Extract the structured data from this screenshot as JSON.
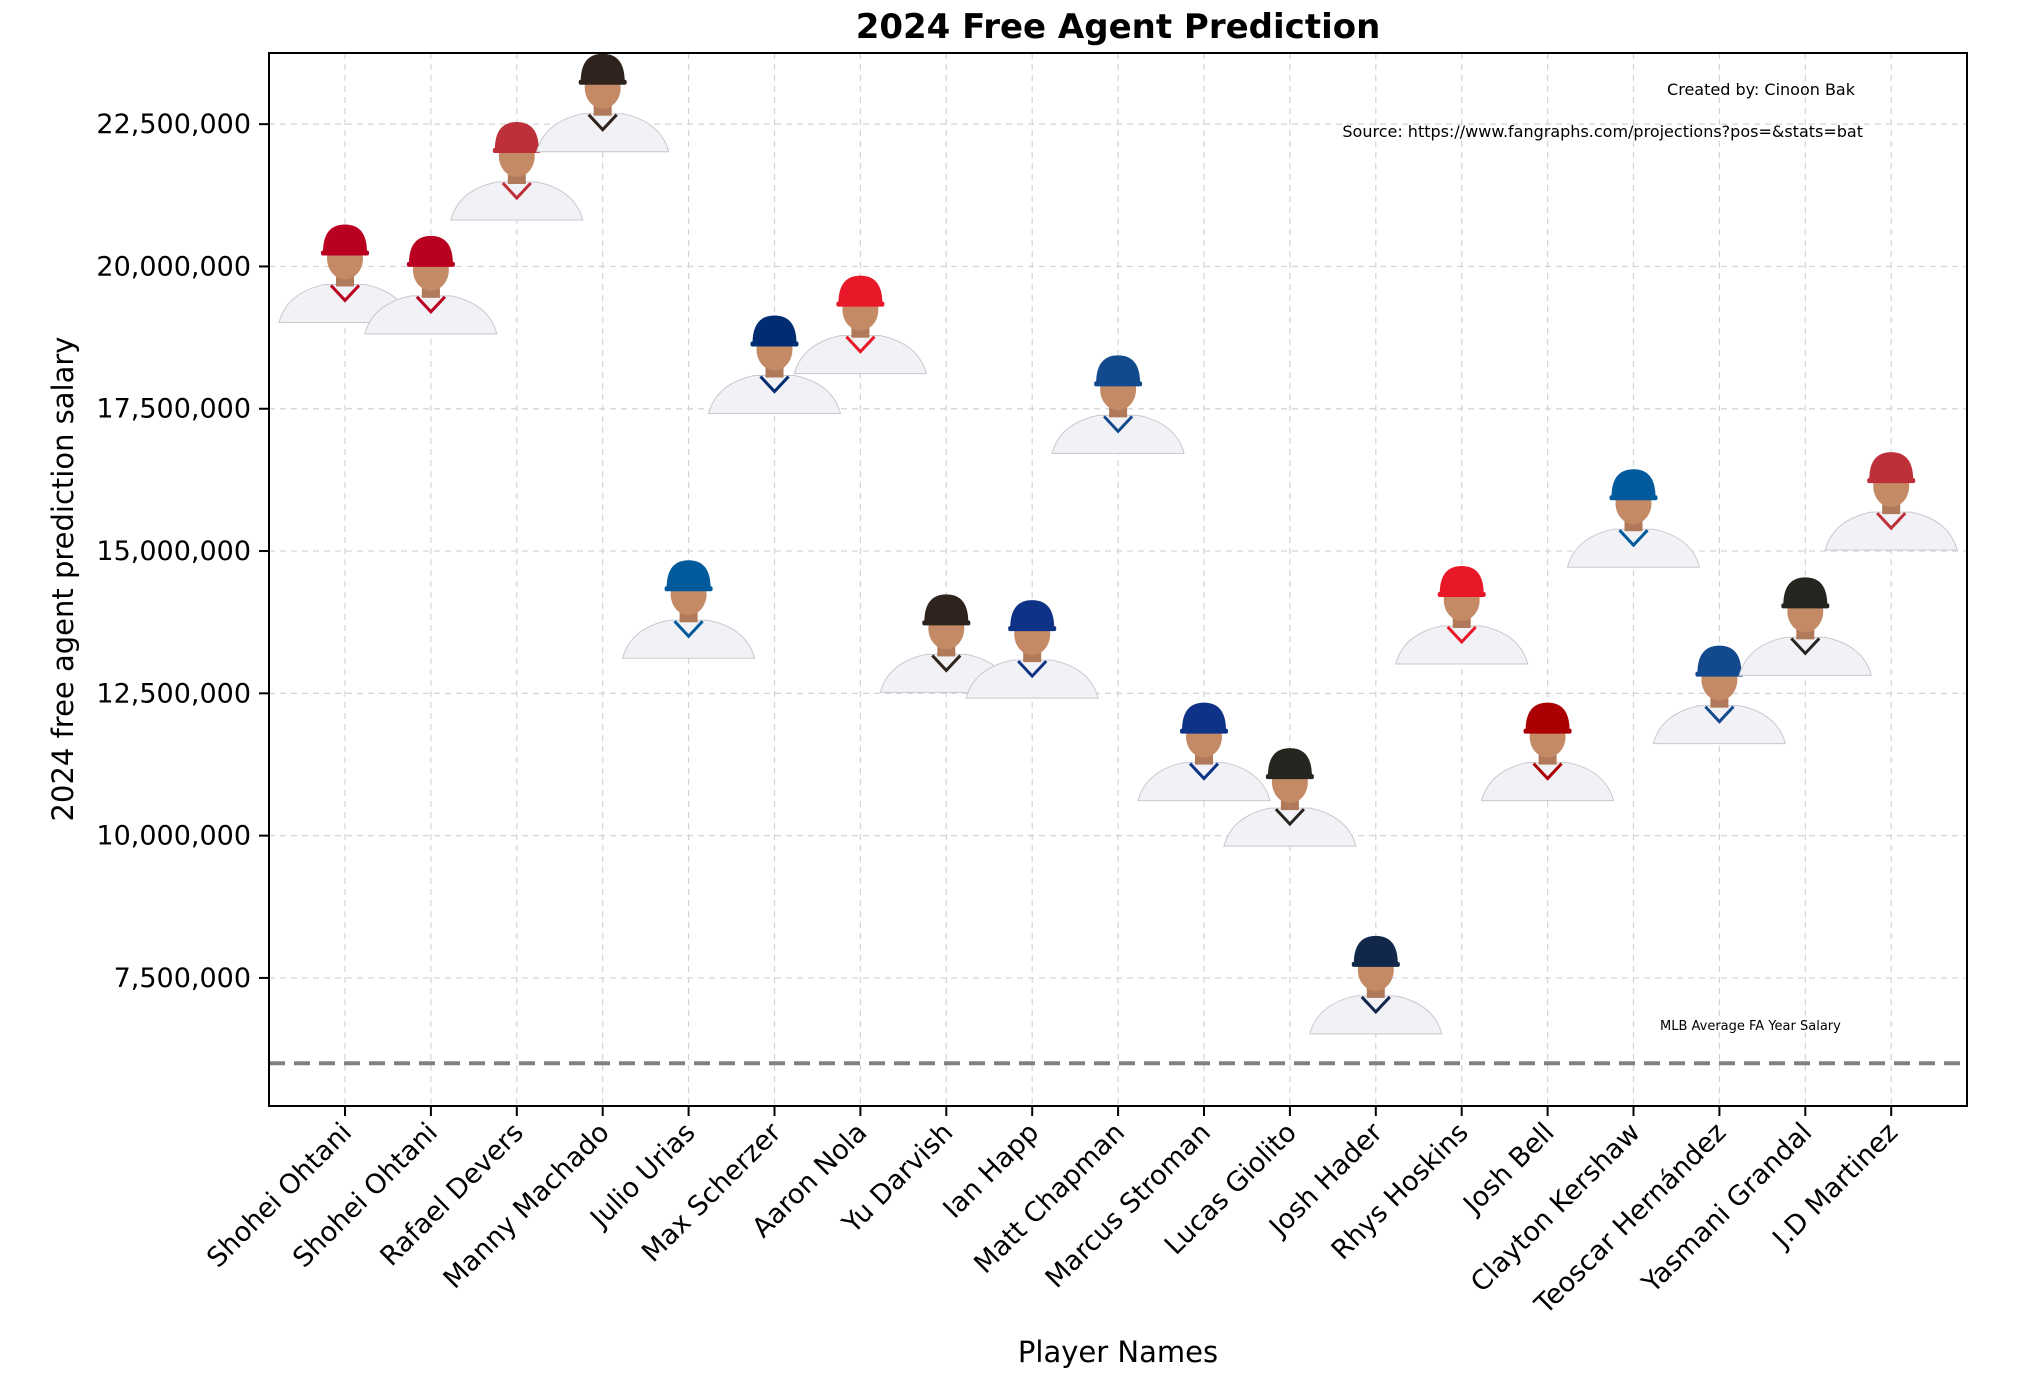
{
  "chart_data": {
    "type": "scatter",
    "title": "2024 Free Agent Prediction",
    "xlabel": "Player Names",
    "ylabel": "2024 free agent prediction salary",
    "ylim": [
      5250000,
      23750000
    ],
    "yticks": [
      7500000,
      10000000,
      12500000,
      15000000,
      17500000,
      20000000,
      22500000
    ],
    "ytick_labels": [
      "7,500,000",
      "10,000,000",
      "12,500,000",
      "15,000,000",
      "17,500,000",
      "20,000,000",
      "22,500,000"
    ],
    "grid": true,
    "marker": "player headshot photo",
    "categories": [
      "Shohei Ohtani",
      "Shohei Ohtani",
      "Rafael Devers",
      "Manny Machado",
      "Julio Urias",
      "Max Scherzer",
      "Aaron Nola",
      "Yu Darvish",
      "Ian Happ",
      "Matt Chapman",
      "Marcus Stroman",
      "Lucas Giolito",
      "Josh Hader",
      "Rhys Hoskins",
      "Josh Bell",
      "Clayton Kershaw",
      "Teoscar Hernández",
      "Yasmani Grandal",
      "J.D Martinez"
    ],
    "values": [
      20000000,
      19800000,
      21800000,
      23000000,
      14100000,
      18400000,
      19100000,
      13500000,
      13400000,
      17700000,
      11600000,
      10800000,
      7500000,
      14000000,
      11600000,
      15700000,
      12600000,
      13800000,
      16000000
    ],
    "team_colors": [
      "#ba0021",
      "#ba0021",
      "#bd3039",
      "#2f241d",
      "#005a9c",
      "#002d72",
      "#e81828",
      "#2f241d",
      "#0e3386",
      "#134a8e",
      "#0e3386",
      "#27251f",
      "#12284b",
      "#e81828",
      "#ab0003",
      "#005a9c",
      "#134a8e",
      "#27251f",
      "#bd3039"
    ],
    "reference_line": {
      "value": 6000000,
      "label": "MLB Average FA Year Salary",
      "style": "dashed",
      "color": "#808080"
    },
    "annotations": [
      "Created by: Cinoon Bak",
      "Source: https://www.fangraphs.com/projections?pos=&stats=bat"
    ]
  }
}
